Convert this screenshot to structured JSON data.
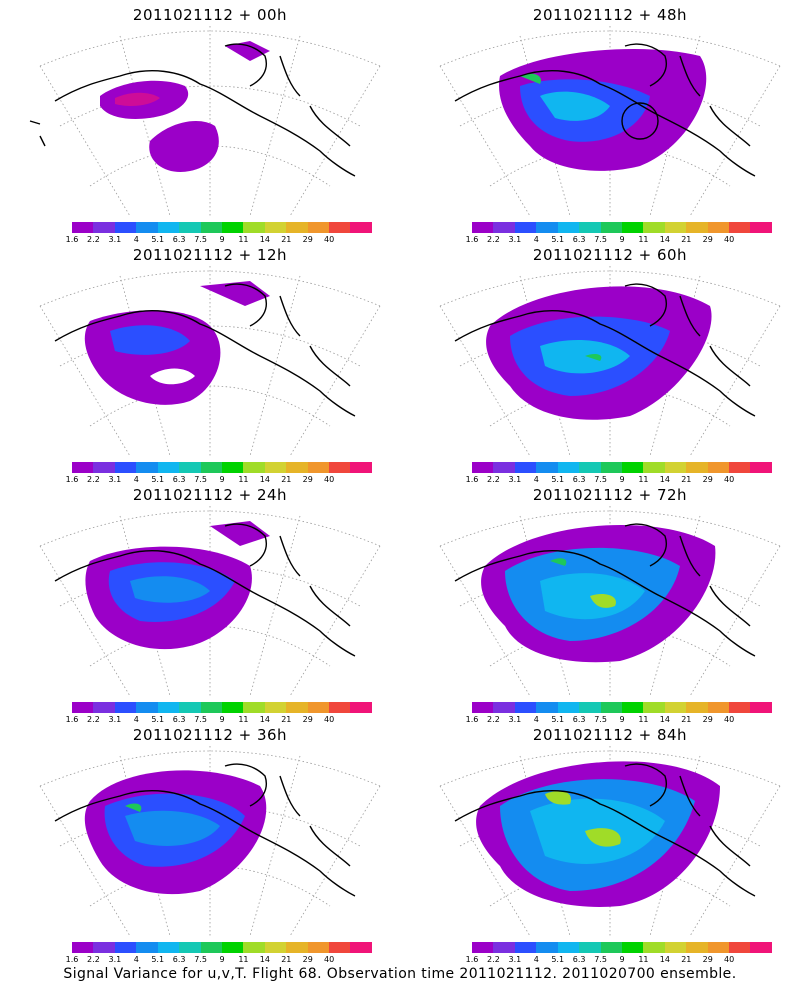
{
  "caption": "Signal Variance for u,v,T. Flight 68. Observation time 2011021112. 2011020700 ensemble.",
  "legend": {
    "colors": [
      "#9b00c8",
      "#7a2fe0",
      "#2b4fff",
      "#148cf0",
      "#10b6f0",
      "#14c8b4",
      "#1ec85a",
      "#00d200",
      "#a0dc28",
      "#d2d232",
      "#e6b428",
      "#f0962c",
      "#f0463c",
      "#f01478"
    ],
    "labels": [
      "1.6",
      "2.2",
      "3.1",
      "4",
      "5.1",
      "6.3",
      "7.5",
      "9",
      "11",
      "14",
      "21",
      "29",
      "40"
    ]
  },
  "panels": [
    {
      "title": "2011021112 + 00h"
    },
    {
      "title": "2011021112 + 48h"
    },
    {
      "title": "2011021112 + 12h"
    },
    {
      "title": "2011021112 + 60h"
    },
    {
      "title": "2011021112 + 24h"
    },
    {
      "title": "2011021112 + 72h"
    },
    {
      "title": "2011021112 + 36h"
    },
    {
      "title": "2011021112 + 84h"
    }
  ]
}
